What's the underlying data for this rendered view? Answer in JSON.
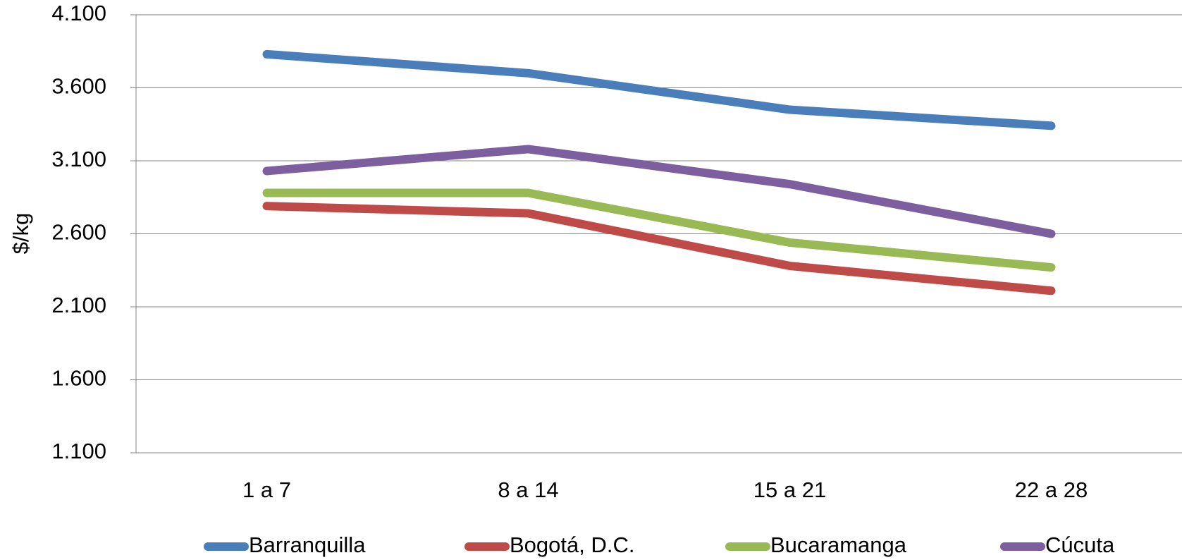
{
  "chart_data": {
    "type": "line",
    "y_label": "$/kg",
    "categories": [
      "1 a 7",
      "8 a 14",
      "15 a 21",
      "22 a 28"
    ],
    "series": [
      {
        "name": "Barranquilla",
        "color": "#4a7ebb",
        "values": [
          3830,
          3700,
          3450,
          3340
        ]
      },
      {
        "name": "Bogotá, D.C.",
        "color": "#be4b48",
        "values": [
          2790,
          2740,
          2380,
          2210
        ]
      },
      {
        "name": "Bucaramanga",
        "color": "#98b954",
        "values": [
          2880,
          2880,
          2540,
          2370
        ]
      },
      {
        "name": "Cúcuta",
        "color": "#7d5fa0",
        "values": [
          3030,
          3180,
          2940,
          2600
        ]
      }
    ],
    "ylim": [
      1100,
      4100
    ],
    "yticks": [
      {
        "value": 1100,
        "label": "1.100"
      },
      {
        "value": 1600,
        "label": "1.600"
      },
      {
        "value": 2100,
        "label": "2.100"
      },
      {
        "value": 2600,
        "label": "2.600"
      },
      {
        "value": 3100,
        "label": "3.100"
      },
      {
        "value": 3600,
        "label": "3.600"
      },
      {
        "value": 4100,
        "label": "4.100"
      }
    ],
    "grid": true,
    "legend": "bottom"
  }
}
